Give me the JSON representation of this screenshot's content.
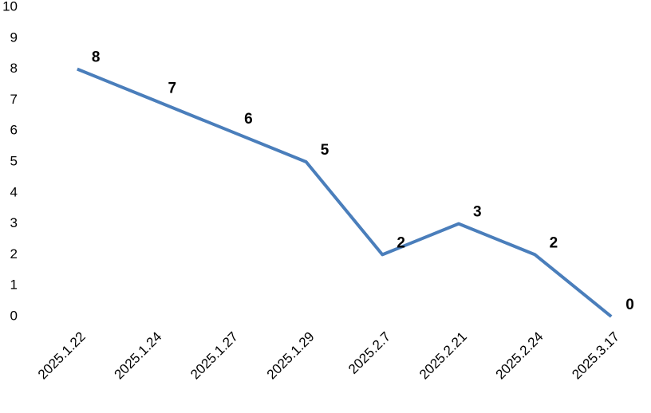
{
  "chart_data": {
    "type": "line",
    "categories": [
      "2025.1.22",
      "2025.1.24",
      "2025.1.27",
      "2025.1.29",
      "2025.2.7",
      "2025.2.21",
      "2025.2.24",
      "2025.3.17"
    ],
    "values": [
      8,
      7,
      6,
      5,
      2,
      3,
      2,
      0
    ],
    "color": "#4a7ebb",
    "ylim": [
      0,
      10
    ],
    "yticks": [
      0,
      1,
      2,
      3,
      4,
      5,
      6,
      7,
      8,
      9,
      10
    ],
    "grid": false
  }
}
